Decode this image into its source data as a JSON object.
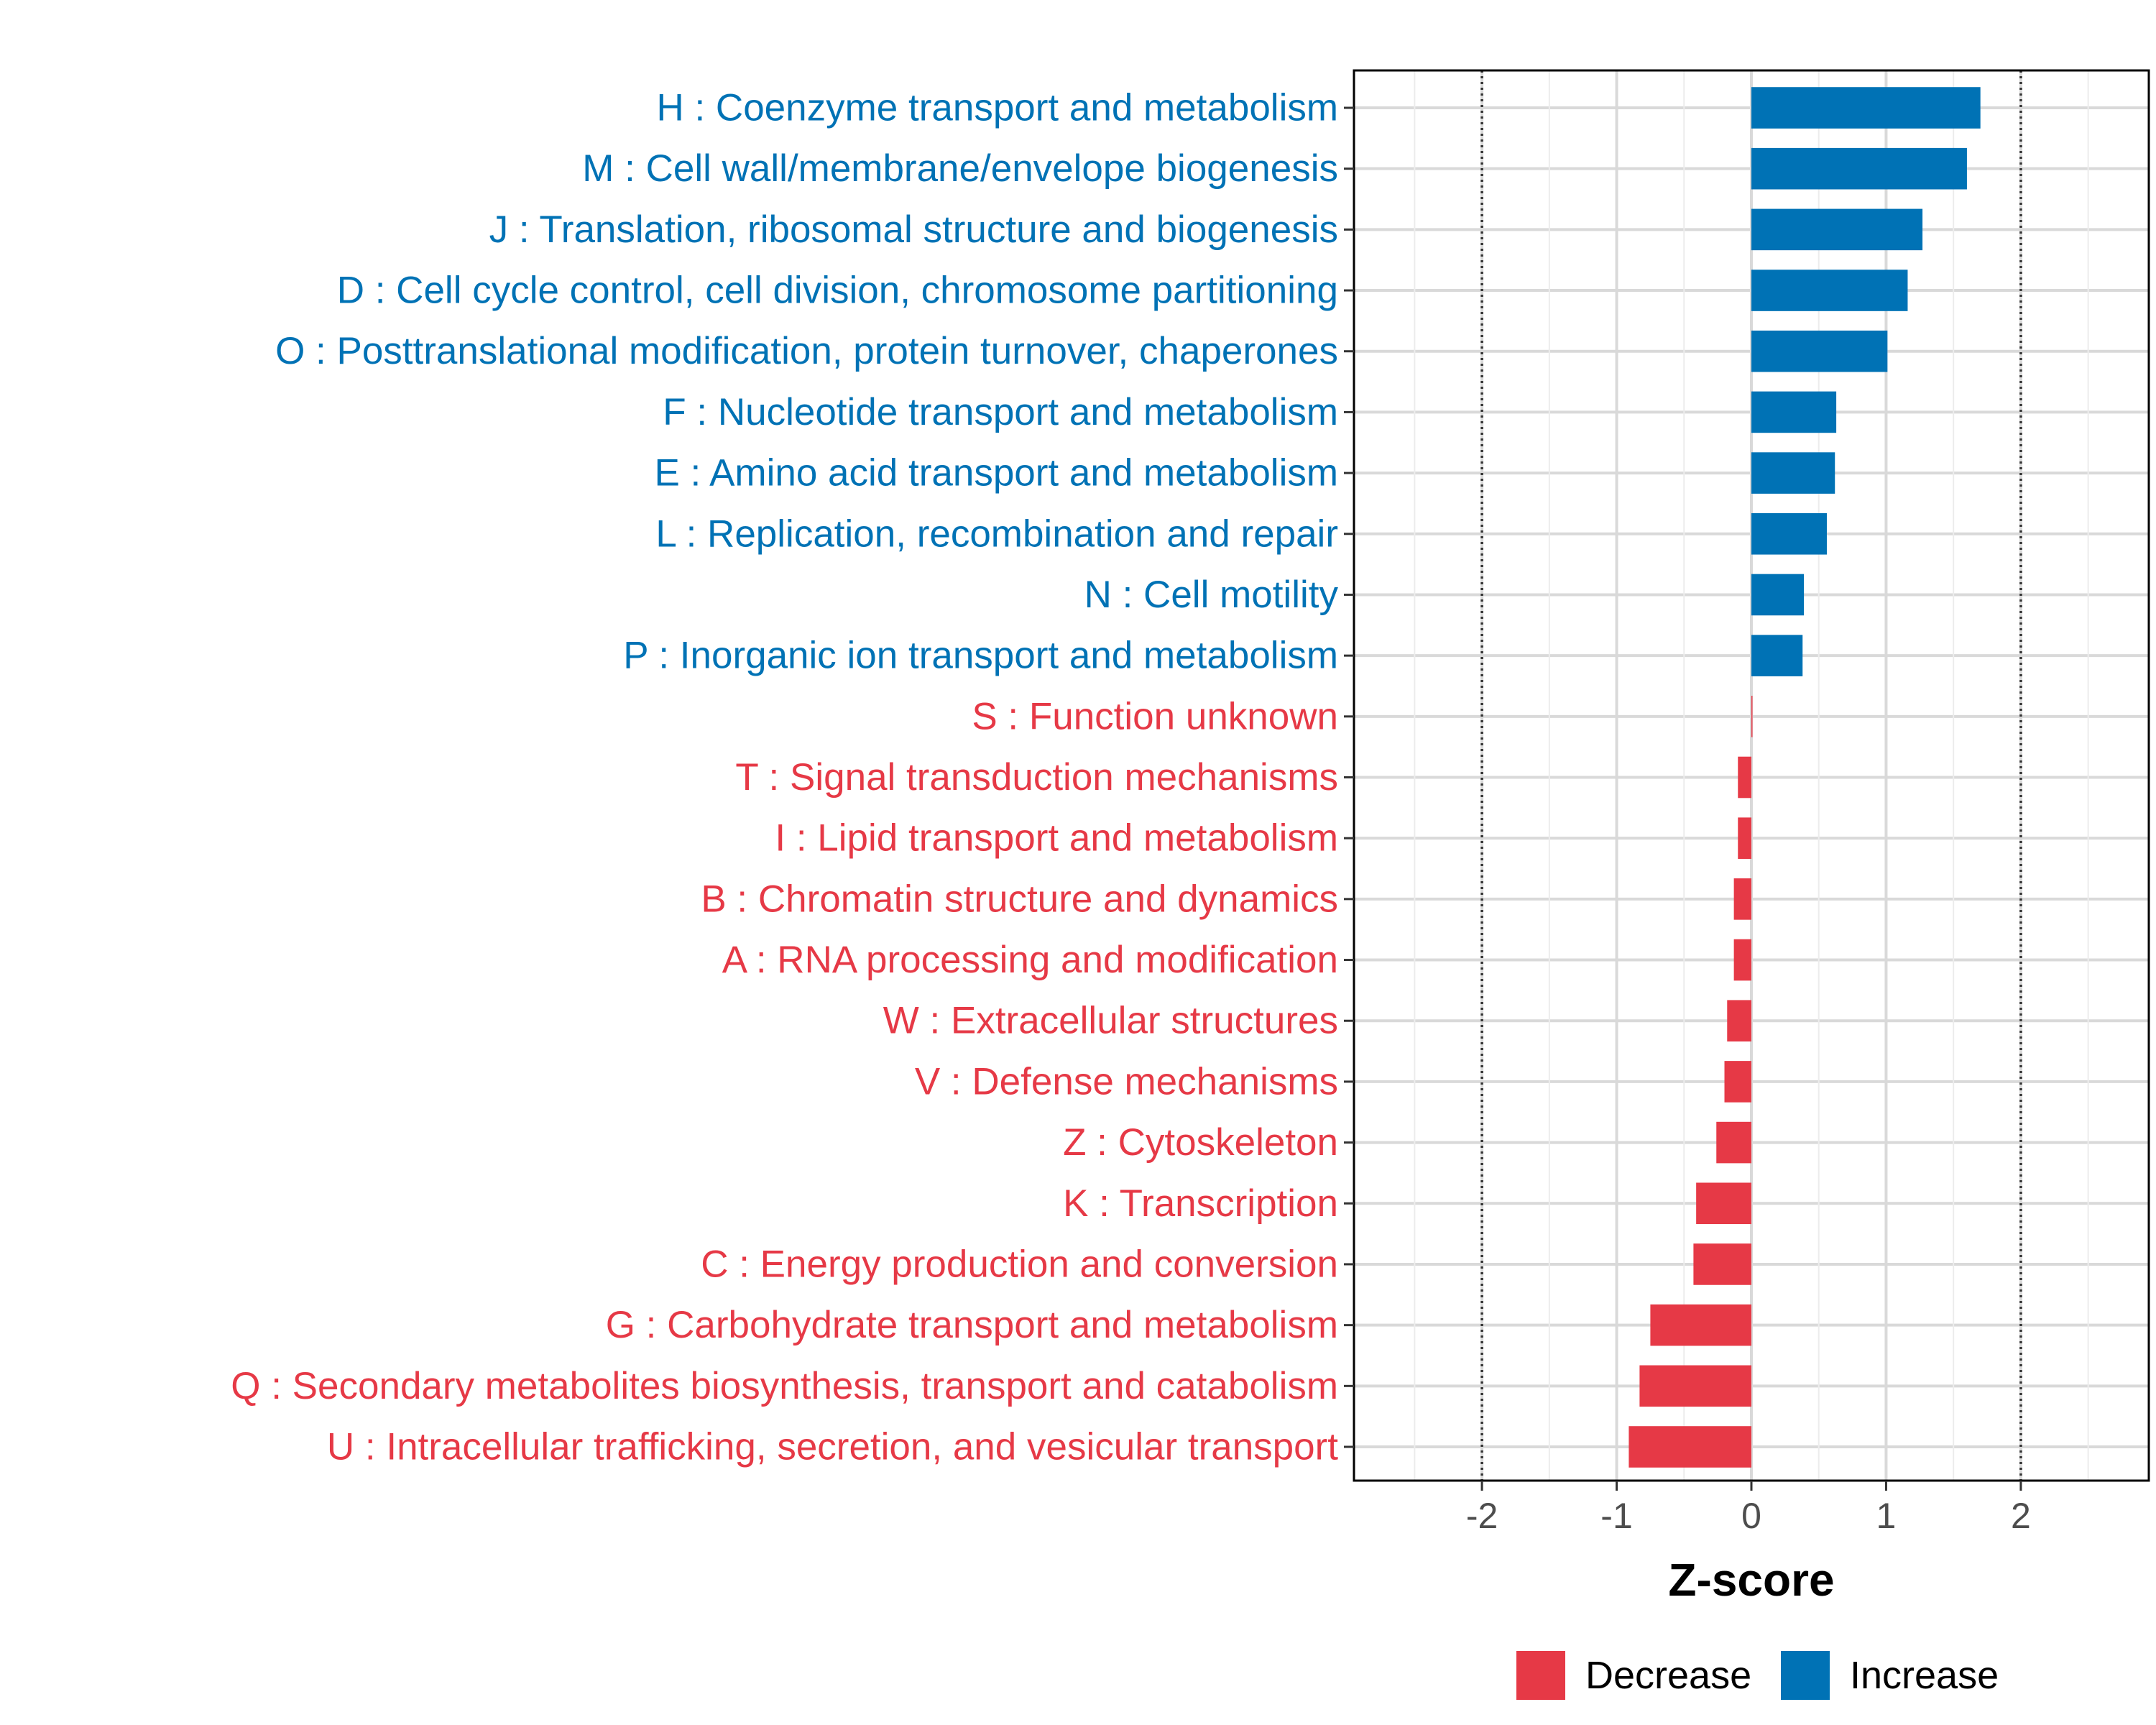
{
  "chart_data": {
    "type": "bar",
    "orientation": "horizontal",
    "xlabel": "Z-score",
    "ylabel": "",
    "xlim": [
      -2.95,
      2.95
    ],
    "xticks": [
      -2,
      -1,
      0,
      1,
      2
    ],
    "xtick_labels": [
      "-2",
      "-1",
      "0",
      "1",
      "2"
    ],
    "reference_lines": [
      -2,
      2
    ],
    "grid": true,
    "legend_position": "bottom",
    "colors": {
      "Increase": "#0072b5",
      "Decrease": "#e63946"
    },
    "categories": [
      "H : Coenzyme transport and metabolism",
      "M : Cell wall/membrane/envelope biogenesis",
      "J : Translation, ribosomal structure and biogenesis",
      "D : Cell cycle control, cell division, chromosome partitioning",
      "O : Posttranslational modification, protein turnover, chaperones",
      "F : Nucleotide transport and metabolism",
      "E : Amino acid transport and metabolism",
      "L : Replication, recombination and repair",
      "N : Cell motility",
      "P : Inorganic ion transport and metabolism",
      "S : Function unknown",
      "T : Signal transduction mechanisms",
      "I : Lipid transport and metabolism",
      "B : Chromatin structure and dynamics",
      "A : RNA processing and modification",
      "W : Extracellular structures",
      "V : Defense mechanisms",
      "Z : Cytoskeleton",
      "K : Transcription",
      "C : Energy production and conversion",
      "G : Carbohydrate transport and metabolism",
      "Q : Secondary metabolites biosynthesis, transport and catabolism",
      "U : Intracellular trafficking, secretion, and vesicular transport"
    ],
    "values": [
      1.7,
      1.6,
      1.27,
      1.16,
      1.01,
      0.63,
      0.62,
      0.56,
      0.39,
      0.38,
      0.0,
      -0.1,
      -0.1,
      -0.13,
      -0.13,
      -0.18,
      -0.2,
      -0.26,
      -0.41,
      -0.43,
      -0.75,
      -0.83,
      -0.91
    ],
    "groups": [
      "Increase",
      "Increase",
      "Increase",
      "Increase",
      "Increase",
      "Increase",
      "Increase",
      "Increase",
      "Increase",
      "Increase",
      "Decrease",
      "Decrease",
      "Decrease",
      "Decrease",
      "Decrease",
      "Decrease",
      "Decrease",
      "Decrease",
      "Decrease",
      "Decrease",
      "Decrease",
      "Decrease",
      "Decrease"
    ],
    "legend": [
      {
        "key": "Decrease",
        "label": "Decrease"
      },
      {
        "key": "Increase",
        "label": "Increase"
      }
    ]
  }
}
